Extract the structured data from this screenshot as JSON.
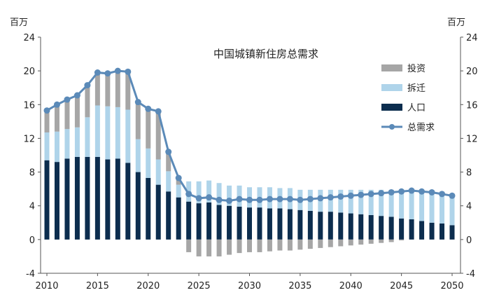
{
  "chart_data": {
    "type": "bar",
    "title": "中国城镇新住房总需求",
    "left_unit": "百万",
    "right_unit": "百万",
    "ylim": [
      -4,
      24
    ],
    "yticks": [
      -4,
      0,
      4,
      8,
      12,
      16,
      20,
      24
    ],
    "xticks": [
      2010,
      2015,
      2020,
      2025,
      2030,
      2035,
      2040,
      2045,
      2050
    ],
    "legend_position": "top-right",
    "colors": {
      "investment": "#a6a6a6",
      "relocation": "#afd4ea",
      "population": "#0c2d4e",
      "total": "#5b8ab8"
    },
    "x": [
      2010,
      2011,
      2012,
      2013,
      2014,
      2015,
      2016,
      2017,
      2018,
      2019,
      2020,
      2021,
      2022,
      2023,
      2024,
      2025,
      2026,
      2027,
      2028,
      2029,
      2030,
      2031,
      2032,
      2033,
      2034,
      2035,
      2036,
      2037,
      2038,
      2039,
      2040,
      2041,
      2042,
      2043,
      2044,
      2045,
      2046,
      2047,
      2048,
      2049,
      2050
    ],
    "series": [
      {
        "name": "人口",
        "key": "population",
        "kind": "bar",
        "values": [
          9.4,
          9.2,
          9.6,
          9.8,
          9.8,
          9.8,
          9.5,
          9.6,
          9.1,
          8.0,
          7.3,
          6.5,
          5.7,
          5.0,
          4.5,
          4.3,
          4.4,
          4.1,
          4.0,
          3.9,
          3.8,
          3.8,
          3.7,
          3.7,
          3.6,
          3.5,
          3.4,
          3.3,
          3.3,
          3.2,
          3.1,
          3.0,
          2.9,
          2.8,
          2.7,
          2.5,
          2.4,
          2.2,
          2.0,
          1.9,
          1.7
        ]
      },
      {
        "name": "拆迁",
        "key": "relocation",
        "kind": "bar",
        "values": [
          3.3,
          3.6,
          3.5,
          3.5,
          4.7,
          6.1,
          6.3,
          6.1,
          6.3,
          3.9,
          3.5,
          3.0,
          2.4,
          1.5,
          2.4,
          2.6,
          2.6,
          2.6,
          2.4,
          2.5,
          2.4,
          2.4,
          2.5,
          2.4,
          2.5,
          2.4,
          2.5,
          2.6,
          2.6,
          2.7,
          2.8,
          2.9,
          3.0,
          3.1,
          3.2,
          3.3,
          3.4,
          3.5,
          3.6,
          3.5,
          3.5
        ]
      },
      {
        "name": "投资",
        "key": "investment",
        "kind": "bar",
        "values": [
          2.6,
          3.2,
          3.5,
          3.8,
          3.8,
          3.9,
          3.9,
          4.3,
          4.6,
          4.3,
          4.7,
          5.7,
          2.3,
          0.8,
          -1.5,
          -2.0,
          -2.0,
          -2.0,
          -1.8,
          -1.6,
          -1.5,
          -1.5,
          -1.4,
          -1.3,
          -1.3,
          -1.2,
          -1.1,
          -1.0,
          -0.9,
          -0.8,
          -0.7,
          -0.6,
          -0.5,
          -0.4,
          -0.3,
          -0.1,
          0,
          0,
          0,
          0,
          0
        ]
      },
      {
        "name": "总需求",
        "key": "total",
        "kind": "line",
        "values": [
          15.3,
          16.0,
          16.6,
          17.1,
          18.3,
          19.8,
          19.7,
          20.0,
          19.9,
          16.3,
          15.5,
          15.2,
          10.4,
          7.3,
          5.4,
          4.9,
          5.0,
          4.7,
          4.6,
          4.8,
          4.7,
          4.7,
          4.8,
          4.8,
          4.8,
          4.7,
          4.8,
          4.9,
          5.0,
          5.1,
          5.2,
          5.3,
          5.4,
          5.5,
          5.6,
          5.7,
          5.8,
          5.7,
          5.6,
          5.4,
          5.2
        ]
      }
    ]
  }
}
